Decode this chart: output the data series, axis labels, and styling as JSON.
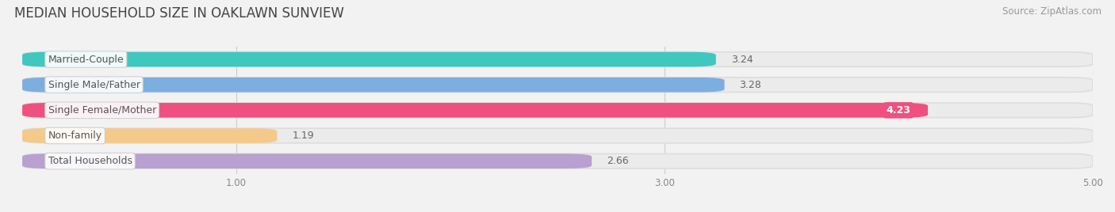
{
  "title": "MEDIAN HOUSEHOLD SIZE IN OAKLAWN SUNVIEW",
  "source": "Source: ZipAtlas.com",
  "categories": [
    "Married-Couple",
    "Single Male/Father",
    "Single Female/Mother",
    "Non-family",
    "Total Households"
  ],
  "values": [
    3.24,
    3.28,
    4.23,
    1.19,
    2.66
  ],
  "colors": [
    "#3ec8bf",
    "#7daee0",
    "#f05080",
    "#f5c98a",
    "#b8a0d0"
  ],
  "value_in_bar": [
    false,
    false,
    true,
    false,
    false
  ],
  "xlim_left": 0.0,
  "xlim_right": 5.0,
  "xticks": [
    1.0,
    3.0,
    5.0
  ],
  "bar_height": 0.58,
  "background_color": "#f2f2f2",
  "bar_bg_color": "#e8e8e8",
  "title_fontsize": 12,
  "label_fontsize": 9,
  "value_fontsize": 9,
  "source_fontsize": 8.5
}
